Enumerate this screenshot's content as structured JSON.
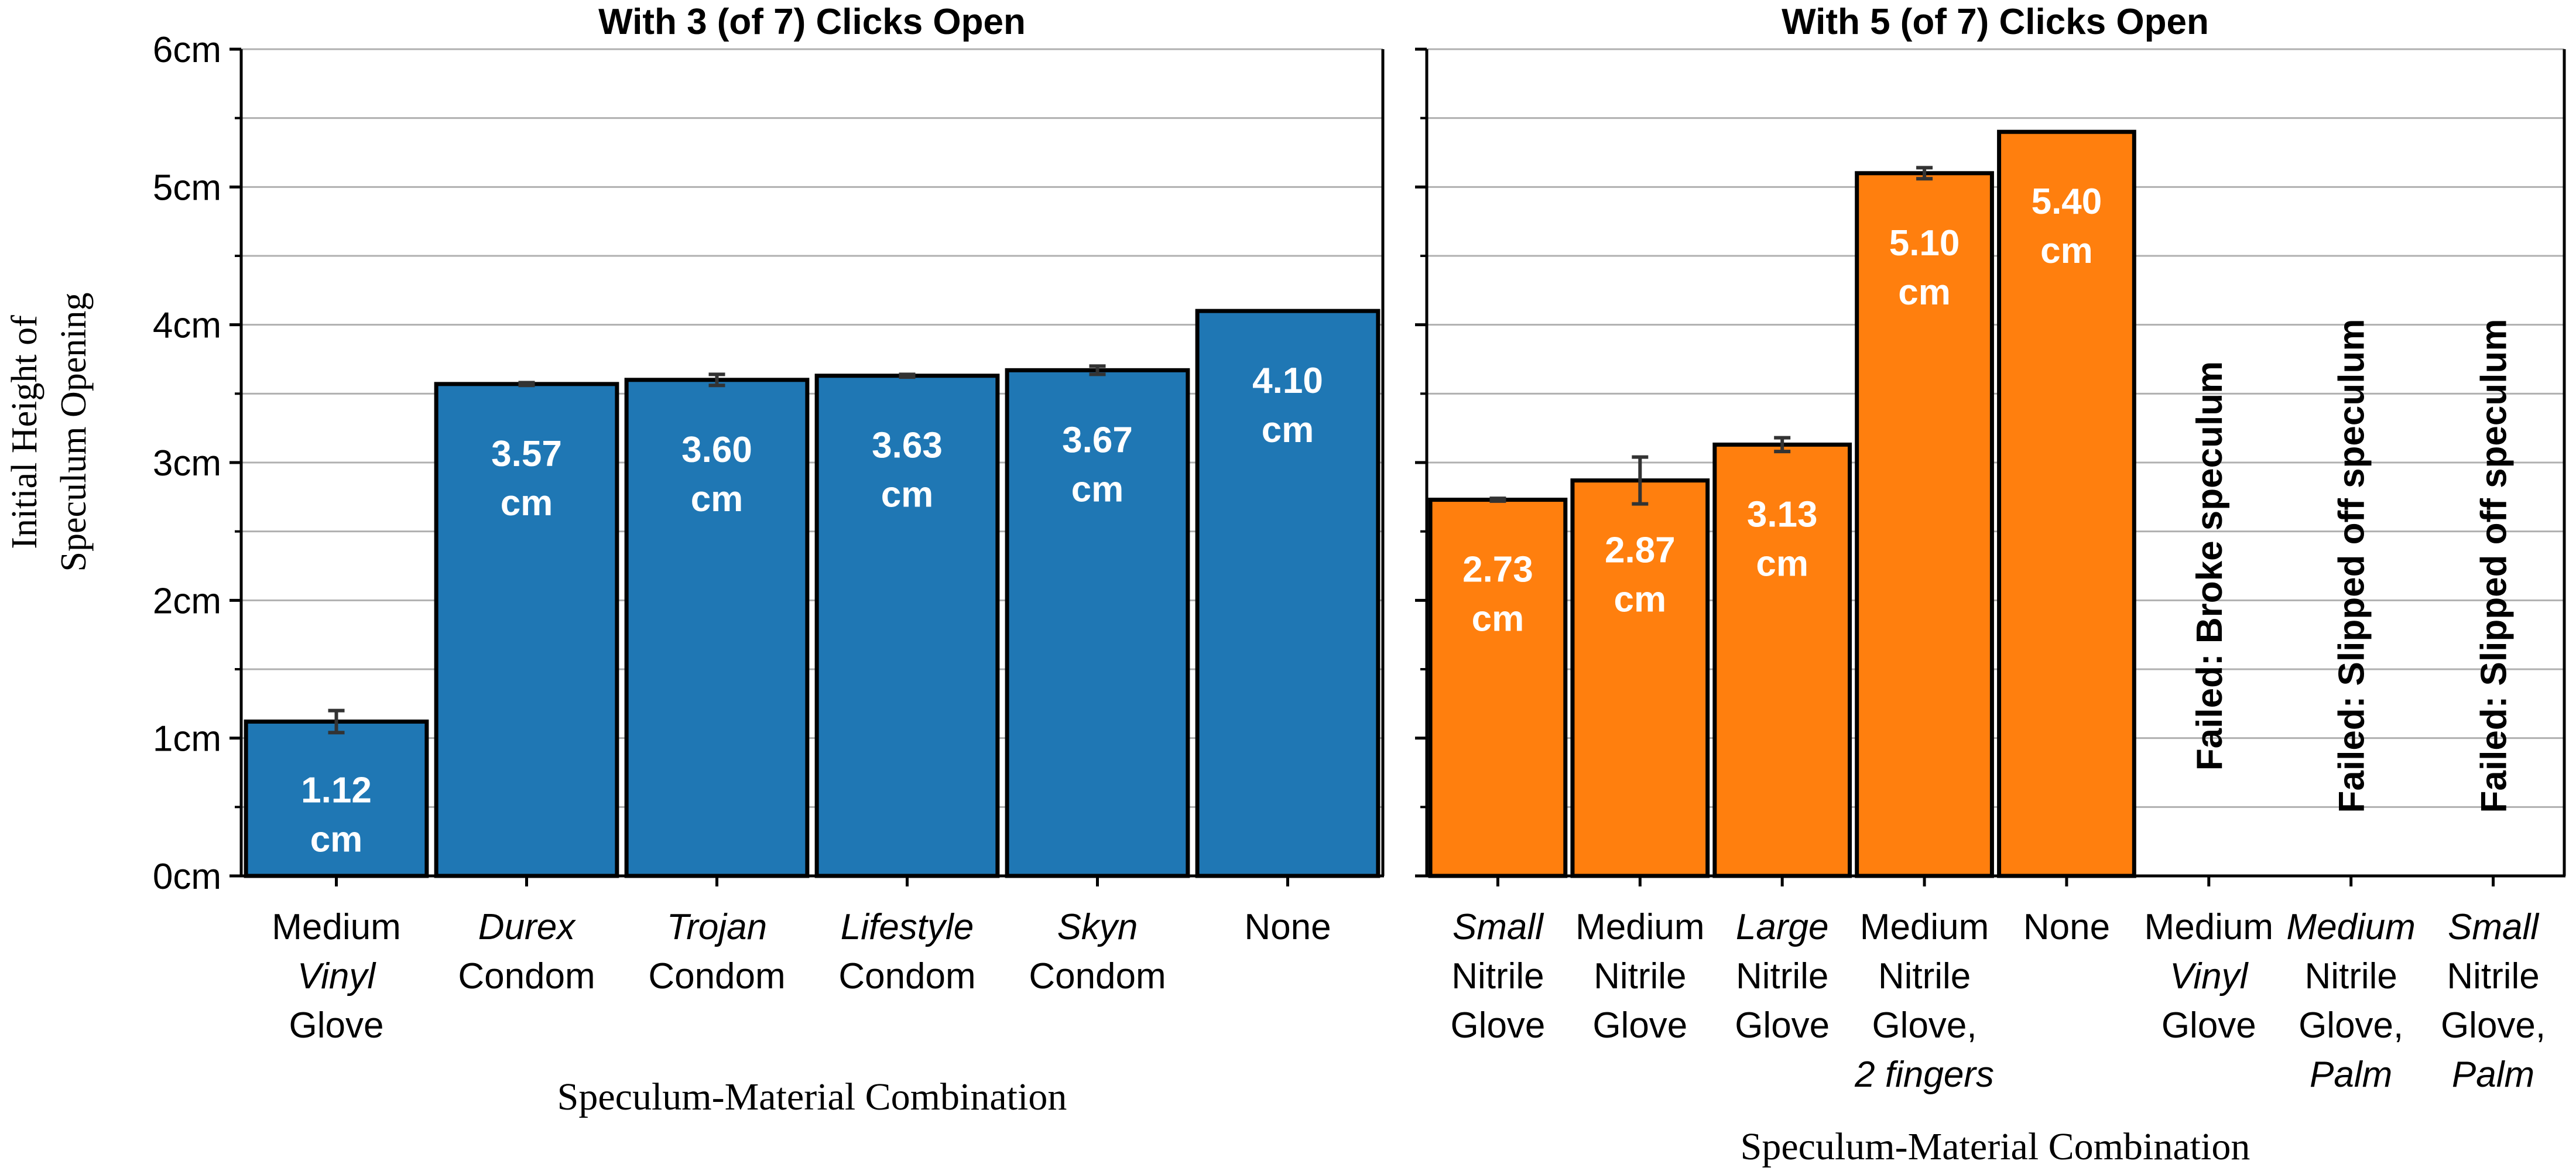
{
  "colors": {
    "panel1": "#1f77b4",
    "panel2": "#ff7f0e",
    "grid": "#b0b0b0",
    "bar_edge": "#000000",
    "label_text": "#ffffff",
    "error_bar": "#333333"
  },
  "ylabel_lines": [
    "Initial Height of",
    "Speculum Opening"
  ],
  "chart_data": [
    {
      "type": "bar",
      "title": "With 3 (of 7) Clicks Open",
      "xlabel": "Speculum-Material Combination",
      "ylabel": "Initial Height of Speculum Opening",
      "ylim": [
        0,
        6
      ],
      "yticks": [
        0,
        1,
        2,
        3,
        4,
        5,
        6
      ],
      "ytick_labels": [
        "0cm",
        "1cm",
        "2cm",
        "3cm",
        "4cm",
        "5cm",
        "6cm"
      ],
      "grid": "horizontal",
      "color": "#1f77b4",
      "categories": [
        [
          {
            "t": "Medium"
          },
          {
            "t": "Vinyl",
            "i": true
          },
          {
            "t": "Glove"
          }
        ],
        [
          {
            "t": "Durex",
            "i": true
          },
          {
            "t": "Condom"
          }
        ],
        [
          {
            "t": "Trojan",
            "i": true
          },
          {
            "t": "Condom"
          }
        ],
        [
          {
            "t": "Lifestyle",
            "i": true
          },
          {
            "t": "Condom"
          }
        ],
        [
          {
            "t": "Skyn",
            "i": true
          },
          {
            "t": "Condom"
          }
        ],
        [
          {
            "t": "None"
          }
        ]
      ],
      "values": [
        1.12,
        3.57,
        3.6,
        3.63,
        3.67,
        4.1
      ],
      "errors": [
        0.08,
        0.01,
        0.04,
        0.01,
        0.03,
        0.0
      ],
      "value_labels": [
        [
          "1.12",
          "cm"
        ],
        [
          "3.57",
          "cm"
        ],
        [
          "3.60",
          "cm"
        ],
        [
          "3.63",
          "cm"
        ],
        [
          "3.67",
          "cm"
        ],
        [
          "4.10",
          "cm"
        ]
      ],
      "failures": []
    },
    {
      "type": "bar",
      "title": "With 5 (of 7) Clicks Open",
      "xlabel": "Speculum-Material Combination",
      "ylabel": "",
      "ylim": [
        0,
        6
      ],
      "yticks": [
        0,
        1,
        2,
        3,
        4,
        5,
        6
      ],
      "ytick_labels": [],
      "grid": "horizontal",
      "color": "#ff7f0e",
      "categories": [
        [
          {
            "t": "Small",
            "i": true
          },
          {
            "t": "Nitrile"
          },
          {
            "t": "Glove"
          }
        ],
        [
          {
            "t": "Medium"
          },
          {
            "t": "Nitrile"
          },
          {
            "t": "Glove"
          }
        ],
        [
          {
            "t": "Large",
            "i": true
          },
          {
            "t": "Nitrile"
          },
          {
            "t": "Glove"
          }
        ],
        [
          {
            "t": "Medium"
          },
          {
            "t": "Nitrile"
          },
          {
            "t": "Glove,"
          },
          {
            "t": "2 fingers",
            "i": true
          }
        ],
        [
          {
            "t": "None"
          }
        ],
        [
          {
            "t": "Medium"
          },
          {
            "t": "Vinyl",
            "i": true
          },
          {
            "t": "Glove"
          }
        ],
        [
          {
            "t": "Medium",
            "i": true
          },
          {
            "t": "Nitrile"
          },
          {
            "t": "Glove,"
          },
          {
            "t": "Palm",
            "i": true
          }
        ],
        [
          {
            "t": "Small",
            "i": true
          },
          {
            "t": "Nitrile"
          },
          {
            "t": "Glove,"
          },
          {
            "t": "Palm",
            "i": true
          }
        ]
      ],
      "values": [
        2.73,
        2.87,
        3.13,
        5.1,
        5.4,
        null,
        null,
        null
      ],
      "errors": [
        0.01,
        0.17,
        0.05,
        0.04,
        0.0,
        null,
        null,
        null
      ],
      "value_labels": [
        [
          "2.73",
          "cm"
        ],
        [
          "2.87",
          "cm"
        ],
        [
          "3.13",
          "cm"
        ],
        [
          "5.10",
          "cm"
        ],
        [
          "5.40",
          "cm"
        ],
        null,
        null,
        null
      ],
      "failures": [
        null,
        null,
        null,
        null,
        null,
        "Failed: Broke speculum",
        "Failed: Slipped off speculum",
        "Failed: Slipped off speculum"
      ]
    }
  ]
}
